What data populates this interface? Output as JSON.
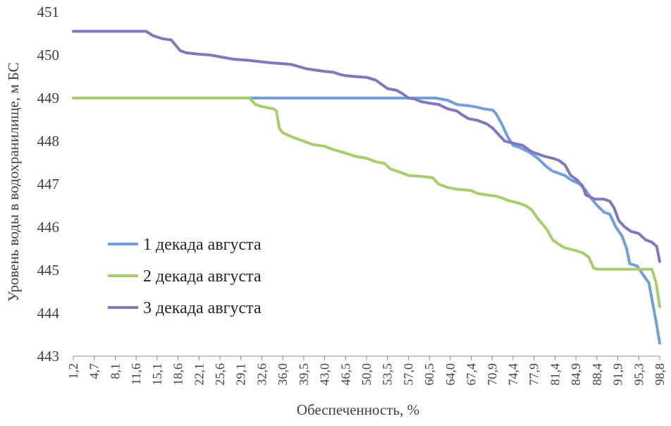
{
  "chart_data": {
    "type": "line",
    "title": "",
    "xlabel": "Обеспеченность, %",
    "ylabel": "Уровень воды в водохранилище, м БС",
    "ylim": [
      443,
      451
    ],
    "yticks": [
      443,
      444,
      445,
      446,
      447,
      448,
      449,
      450,
      451
    ],
    "xlim": [
      1.2,
      98.8
    ],
    "xticks": [
      "1,2",
      "4,7",
      "8,1",
      "11,6",
      "15,1",
      "18,6",
      "22,1",
      "25,6",
      "29,1",
      "32,6",
      "36,0",
      "39,5",
      "43,0",
      "46,5",
      "50,0",
      "53,5",
      "57,0",
      "60,5",
      "64,0",
      "67,4",
      "70,9",
      "74,4",
      "77,9",
      "81,4",
      "84,9",
      "88,4",
      "91,9",
      "95,3",
      "98,8"
    ],
    "xtick_values": [
      1.2,
      4.7,
      8.1,
      11.6,
      15.1,
      18.6,
      22.1,
      25.6,
      29.1,
      32.6,
      36.0,
      39.5,
      43.0,
      46.5,
      50.0,
      53.5,
      57.0,
      60.5,
      64.0,
      67.4,
      70.9,
      74.4,
      77.9,
      81.4,
      84.9,
      88.4,
      91.9,
      95.3,
      98.8
    ],
    "grid": false,
    "legend_position": "left-lower",
    "series": [
      {
        "name": "1 декада августа",
        "color": "#6f9fdc",
        "points": [
          [
            1.2,
            449.0
          ],
          [
            60.5,
            449.0
          ],
          [
            61.5,
            449.0
          ],
          [
            63.5,
            448.95
          ],
          [
            65.0,
            448.85
          ],
          [
            67.0,
            448.82
          ],
          [
            68.0,
            448.8
          ],
          [
            69.5,
            448.75
          ],
          [
            71.0,
            448.72
          ],
          [
            71.5,
            448.65
          ],
          [
            72.5,
            448.4
          ],
          [
            73.5,
            448.1
          ],
          [
            74.4,
            447.9
          ],
          [
            75.5,
            447.85
          ],
          [
            77.0,
            447.75
          ],
          [
            78.5,
            447.6
          ],
          [
            80.0,
            447.4
          ],
          [
            81.0,
            447.3
          ],
          [
            82.0,
            447.25
          ],
          [
            83.0,
            447.2
          ],
          [
            84.0,
            447.1
          ],
          [
            85.5,
            447.0
          ],
          [
            86.5,
            446.85
          ],
          [
            87.5,
            446.65
          ],
          [
            88.4,
            446.5
          ],
          [
            89.5,
            446.35
          ],
          [
            90.5,
            446.3
          ],
          [
            91.5,
            446.0
          ],
          [
            92.5,
            445.8
          ],
          [
            93.3,
            445.5
          ],
          [
            93.8,
            445.15
          ],
          [
            95.0,
            445.1
          ],
          [
            96.0,
            444.9
          ],
          [
            97.0,
            444.7
          ],
          [
            98.2,
            443.8
          ],
          [
            98.8,
            443.3
          ]
        ]
      },
      {
        "name": "2 декада августа",
        "color": "#a9cd6c",
        "points": [
          [
            1.2,
            449.0
          ],
          [
            30.5,
            449.0
          ],
          [
            31.5,
            448.85
          ],
          [
            32.6,
            448.8
          ],
          [
            34.5,
            448.75
          ],
          [
            35.0,
            448.7
          ],
          [
            35.5,
            448.3
          ],
          [
            36.0,
            448.2
          ],
          [
            37.5,
            448.1
          ],
          [
            39.5,
            448.0
          ],
          [
            41.0,
            447.92
          ],
          [
            43.0,
            447.88
          ],
          [
            44.5,
            447.8
          ],
          [
            46.5,
            447.72
          ],
          [
            48.0,
            447.65
          ],
          [
            50.0,
            447.6
          ],
          [
            51.5,
            447.52
          ],
          [
            53.0,
            447.48
          ],
          [
            54.0,
            447.35
          ],
          [
            55.5,
            447.28
          ],
          [
            57.0,
            447.2
          ],
          [
            59.0,
            447.18
          ],
          [
            61.0,
            447.15
          ],
          [
            62.0,
            447.0
          ],
          [
            63.5,
            446.92
          ],
          [
            65.0,
            446.88
          ],
          [
            67.4,
            446.85
          ],
          [
            68.5,
            446.78
          ],
          [
            70.0,
            446.75
          ],
          [
            71.5,
            446.72
          ],
          [
            72.5,
            446.68
          ],
          [
            73.5,
            446.62
          ],
          [
            75.0,
            446.57
          ],
          [
            76.5,
            446.5
          ],
          [
            77.5,
            446.4
          ],
          [
            78.5,
            446.2
          ],
          [
            80.0,
            445.95
          ],
          [
            81.0,
            445.7
          ],
          [
            82.0,
            445.6
          ],
          [
            83.0,
            445.52
          ],
          [
            84.0,
            445.48
          ],
          [
            85.0,
            445.45
          ],
          [
            86.0,
            445.4
          ],
          [
            87.0,
            445.3
          ],
          [
            87.8,
            445.05
          ],
          [
            88.4,
            445.02
          ],
          [
            90.0,
            445.02
          ],
          [
            96.8,
            445.02
          ],
          [
            97.5,
            445.02
          ],
          [
            98.2,
            444.7
          ],
          [
            98.8,
            444.15
          ]
        ]
      },
      {
        "name": "3 декада августа",
        "color": "#8078be",
        "points": [
          [
            1.2,
            450.55
          ],
          [
            13.3,
            450.55
          ],
          [
            14.5,
            450.45
          ],
          [
            16.0,
            450.38
          ],
          [
            17.5,
            450.35
          ],
          [
            19.0,
            450.1
          ],
          [
            20.0,
            450.05
          ],
          [
            22.0,
            450.02
          ],
          [
            24.0,
            450.0
          ],
          [
            26.0,
            449.95
          ],
          [
            28.0,
            449.9
          ],
          [
            30.0,
            449.88
          ],
          [
            32.0,
            449.85
          ],
          [
            34.0,
            449.82
          ],
          [
            36.0,
            449.8
          ],
          [
            37.5,
            449.78
          ],
          [
            39.0,
            449.72
          ],
          [
            40.0,
            449.68
          ],
          [
            41.5,
            449.65
          ],
          [
            43.0,
            449.62
          ],
          [
            44.5,
            449.6
          ],
          [
            45.5,
            449.55
          ],
          [
            46.5,
            449.52
          ],
          [
            48.0,
            449.5
          ],
          [
            50.0,
            449.48
          ],
          [
            51.5,
            449.42
          ],
          [
            52.5,
            449.32
          ],
          [
            53.5,
            449.22
          ],
          [
            55.0,
            449.18
          ],
          [
            56.0,
            449.1
          ],
          [
            57.0,
            449.0
          ],
          [
            58.0,
            448.98
          ],
          [
            59.0,
            448.92
          ],
          [
            60.5,
            448.88
          ],
          [
            62.0,
            448.85
          ],
          [
            63.5,
            448.75
          ],
          [
            65.0,
            448.7
          ],
          [
            66.0,
            448.6
          ],
          [
            67.0,
            448.52
          ],
          [
            68.5,
            448.48
          ],
          [
            70.0,
            448.4
          ],
          [
            71.0,
            448.3
          ],
          [
            72.0,
            448.15
          ],
          [
            73.0,
            448.0
          ],
          [
            74.4,
            447.95
          ],
          [
            76.0,
            447.9
          ],
          [
            77.5,
            447.75
          ],
          [
            78.5,
            447.7
          ],
          [
            79.5,
            447.65
          ],
          [
            81.0,
            447.6
          ],
          [
            82.0,
            447.55
          ],
          [
            83.0,
            447.45
          ],
          [
            84.0,
            447.2
          ],
          [
            85.0,
            447.1
          ],
          [
            86.0,
            446.95
          ],
          [
            86.5,
            446.75
          ],
          [
            88.0,
            446.65
          ],
          [
            89.5,
            446.65
          ],
          [
            90.5,
            446.6
          ],
          [
            91.2,
            446.45
          ],
          [
            92.0,
            446.15
          ],
          [
            93.0,
            446.0
          ],
          [
            94.0,
            445.9
          ],
          [
            95.3,
            445.85
          ],
          [
            96.5,
            445.7
          ],
          [
            97.5,
            445.65
          ],
          [
            98.3,
            445.55
          ],
          [
            98.8,
            445.2
          ]
        ]
      }
    ]
  }
}
